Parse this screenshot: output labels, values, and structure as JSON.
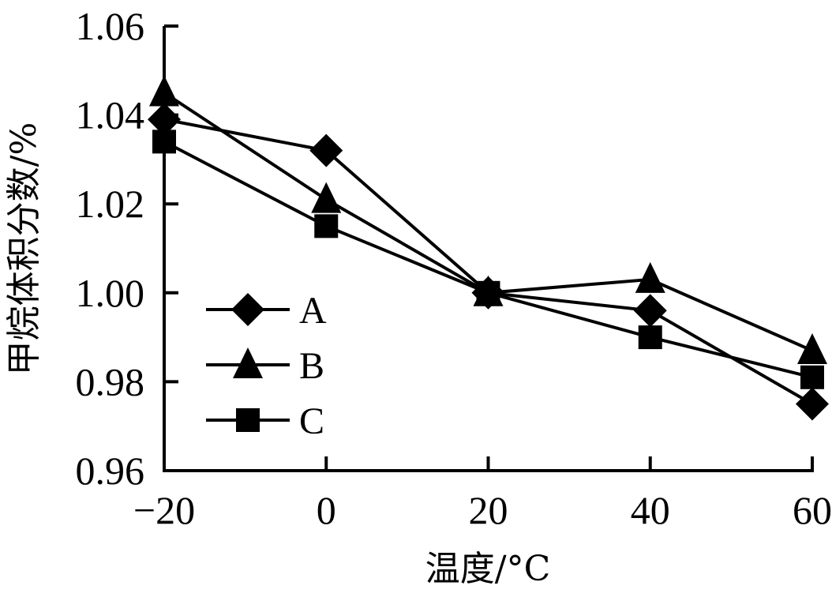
{
  "chart_data": {
    "type": "line",
    "title": "",
    "xlabel": "温度/°C",
    "ylabel": "甲烷体积分数/%",
    "x": [
      -20,
      0,
      20,
      40,
      60
    ],
    "x_ticks": [
      "−20",
      "0",
      "20",
      "40",
      "60"
    ],
    "y_ticks": [
      "0.96",
      "0.98",
      "1.00",
      "1.02",
      "1.04",
      "1.06"
    ],
    "xlim": [
      -20,
      60
    ],
    "ylim": [
      0.96,
      1.06
    ],
    "grid": false,
    "legend_position": "inside-left-lower",
    "series": [
      {
        "name": "A",
        "marker": "diamond",
        "values": [
          1.039,
          1.032,
          1.0,
          0.996,
          0.975
        ]
      },
      {
        "name": "B",
        "marker": "triangle",
        "values": [
          1.045,
          1.021,
          1.0,
          1.003,
          0.987
        ]
      },
      {
        "name": "C",
        "marker": "square",
        "values": [
          1.034,
          1.015,
          1.0,
          0.99,
          0.981
        ]
      }
    ],
    "colors": {
      "line": "#000000",
      "marker": "#000000",
      "background": "#ffffff"
    }
  }
}
